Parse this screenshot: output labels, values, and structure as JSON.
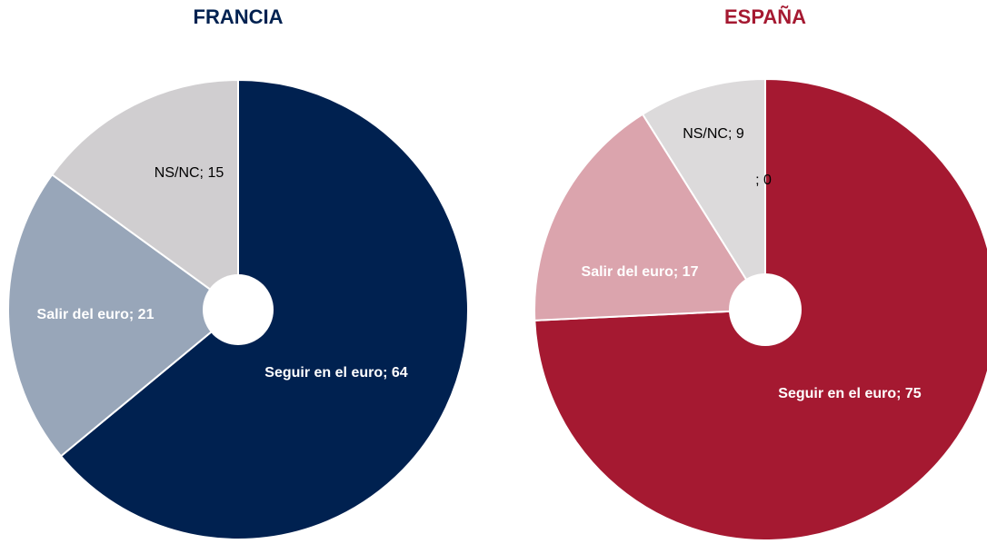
{
  "chart_data": [
    {
      "type": "pie",
      "title": "FRANCIA",
      "title_color": "#002150",
      "categories": [
        "Seguir en el euro",
        "Salir del euro",
        "NS/NC"
      ],
      "values": [
        64,
        21,
        15
      ],
      "value_labels": [
        "Seguir en el euro; 64",
        "Salir del euro; 21",
        "NS/NC; 15"
      ],
      "colors": [
        "#002150",
        "#98a6b9",
        "#d0ced0"
      ],
      "label_colors": [
        "#ffffff",
        "#ffffff",
        "#000000"
      ]
    },
    {
      "type": "pie",
      "title": "ESPAÑA",
      "title_color": "#a51931",
      "categories": [
        "Seguir en el euro",
        "Salir del euro",
        "NS/NC",
        null
      ],
      "values": [
        75,
        17,
        9,
        0
      ],
      "value_labels": [
        "Seguir en el euro; 75",
        "Salir del euro; 17",
        "NS/NC; 9",
        "; 0"
      ],
      "colors": [
        "#a51931",
        "#dba4ad",
        "#dcdadb",
        "#dcdadb"
      ],
      "label_colors": [
        "#ffffff",
        "#ffffff",
        "#000000",
        "#000000"
      ]
    }
  ]
}
